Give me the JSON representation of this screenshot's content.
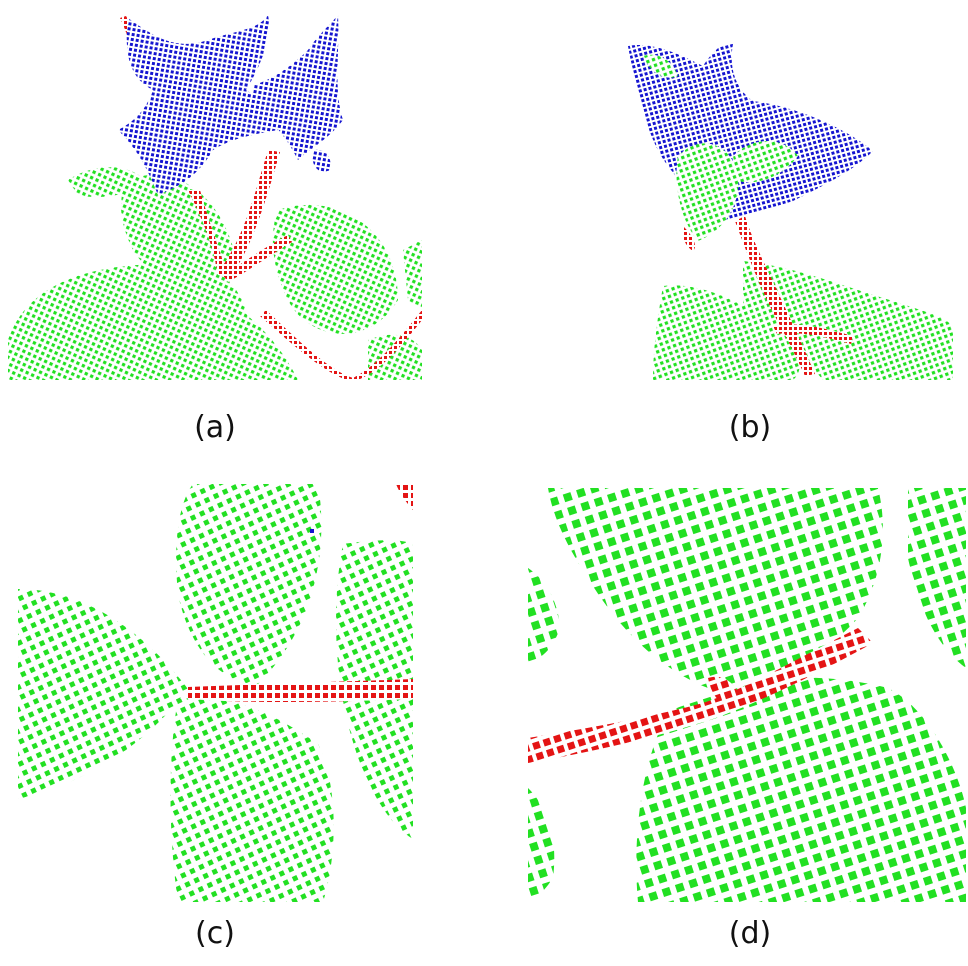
{
  "captions": {
    "a": "(a)",
    "b": "(b)",
    "c": "(c)",
    "d": "(d)"
  },
  "colors": {
    "leaf": "#22e022",
    "stem": "#e41414",
    "flower": "#1414d0",
    "background": "#ffffff"
  },
  "legend_classes": [
    "leaf",
    "stem",
    "flower"
  ]
}
